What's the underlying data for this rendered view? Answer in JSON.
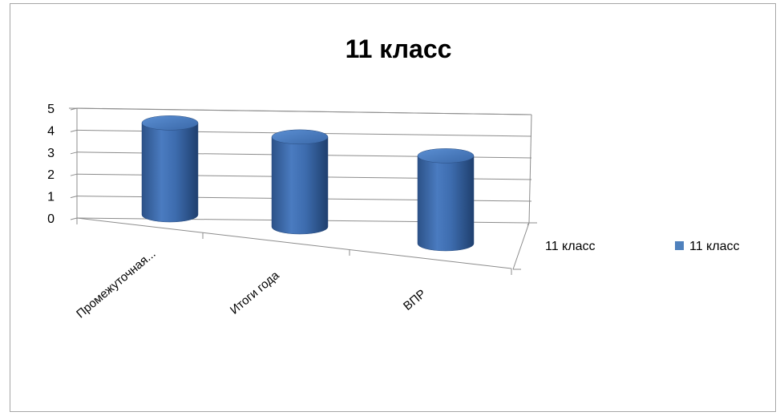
{
  "chart_data": {
    "type": "bar",
    "style": "3d-cylinder",
    "title": "11 класс",
    "categories": [
      "Промежуточная...",
      "Итоги года",
      "ВПР"
    ],
    "series": [
      {
        "name": "11 класс",
        "values": [
          4.5,
          4.5,
          4.5
        ],
        "color": "#4f81bd"
      }
    ],
    "yticks": [
      "0",
      "1",
      "2",
      "3",
      "4",
      "5"
    ],
    "ylim": [
      0,
      5
    ],
    "depth_axis_label": "11 класс",
    "legend_label": "11 класс",
    "legend_position": "right",
    "grid": true
  }
}
